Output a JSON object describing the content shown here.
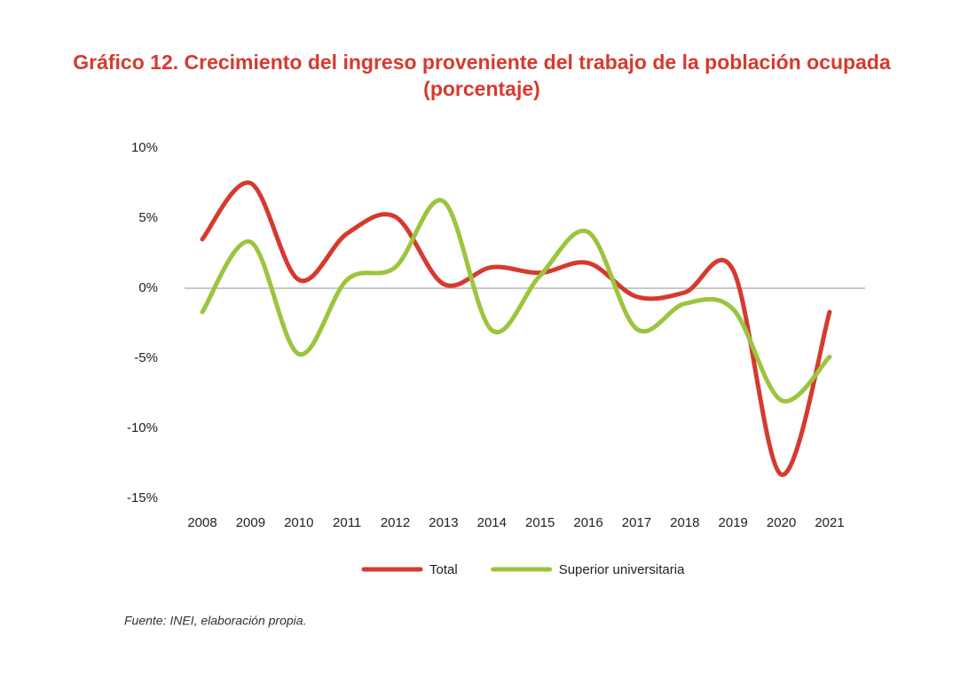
{
  "chart_data": {
    "type": "line",
    "title": "Gráfico 12. Crecimiento del ingreso proveniente del trabajo de la población ocupada",
    "subtitle": "(porcentaje)",
    "source": "Fuente: INEI, elaboración propia.",
    "categories": [
      "2008",
      "2009",
      "2010",
      "2011",
      "2012",
      "2013",
      "2014",
      "2015",
      "2016",
      "2017",
      "2018",
      "2019",
      "2020",
      "2021"
    ],
    "series": [
      {
        "name": "Total",
        "color": "#d63a2f",
        "values": [
          3.5,
          7.5,
          0.6,
          3.9,
          5.1,
          0.3,
          1.5,
          1.1,
          1.8,
          -0.6,
          -0.3,
          1.3,
          -13.3,
          -1.7
        ]
      },
      {
        "name": "Superior universitaria",
        "color": "#9bc53d",
        "values": [
          -1.7,
          3.3,
          -4.7,
          0.6,
          1.5,
          6.2,
          -3.0,
          0.9,
          4.0,
          -2.9,
          -1.1,
          -1.5,
          -8.0,
          -4.9
        ]
      }
    ],
    "ylim": [
      -15,
      10
    ],
    "yticks": [
      {
        "value": 10,
        "label": "10%"
      },
      {
        "value": 5,
        "label": "5%"
      },
      {
        "value": 0,
        "label": "0%"
      },
      {
        "value": -5,
        "label": "-5%"
      },
      {
        "value": -10,
        "label": "-10%"
      },
      {
        "value": -15,
        "label": "-15%"
      }
    ],
    "legend": "bottom"
  }
}
